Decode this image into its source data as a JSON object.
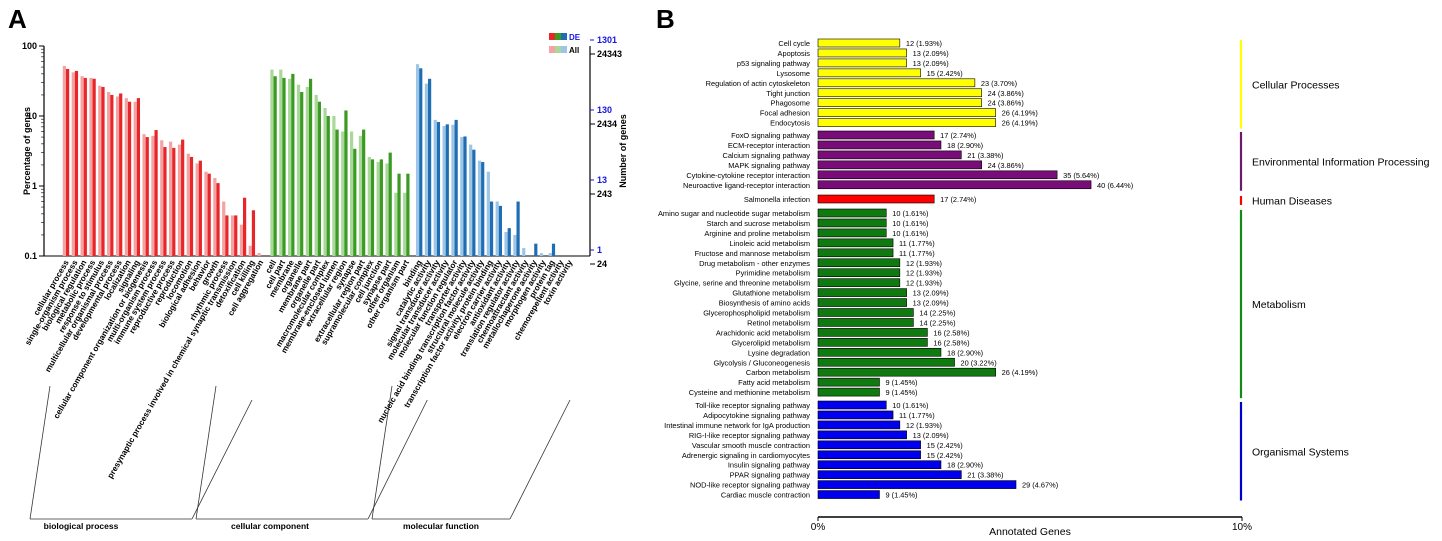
{
  "chart_data": [
    {
      "panel": "A",
      "type": "bar",
      "title": "",
      "ylabel_left": "Percentage of genes",
      "ylabel_right": "Number of genes",
      "yscale": "log",
      "ylim": [
        0.1,
        100
      ],
      "left_ticks": [
        "100",
        "10",
        "1",
        "0.1"
      ],
      "right_ticks": [
        {
          "de": "1301",
          "all": "24343"
        },
        {
          "de": "130",
          "all": "2434"
        },
        {
          "de": "13",
          "all": "243"
        },
        {
          "de": "1",
          "all": "24"
        }
      ],
      "legend": {
        "de_label": "DE",
        "all_label": "All"
      },
      "groups": [
        {
          "name": "biological process",
          "color_de": "#e8262a",
          "color_all": "#f4a3a3",
          "terms": [
            "cellular process",
            "single-organism process",
            "biological regulation",
            "metabolic process",
            "response to stimulus",
            "multicellular organismal process",
            "developmental process",
            "localization",
            "signaling",
            "cellular component organization or biogenesis",
            "multi-organism process",
            "immune system process",
            "reproductive process",
            "reproduction",
            "locomotion",
            "biological adhesion",
            "behavior",
            "growth",
            "rhythmic process",
            "presynaptic process involved in chemical synaptic transmission",
            "detoxification",
            "cell killing",
            "cell aggregation"
          ],
          "de": [
            47,
            44,
            35,
            34,
            26,
            20,
            21,
            16,
            18,
            5,
            6.3,
            3.6,
            3.5,
            4.6,
            2.6,
            2.3,
            1.5,
            1.1,
            0.38,
            0.38,
            0.68,
            0.45,
            0
          ],
          "all": [
            52,
            42,
            37,
            35,
            27,
            22,
            19,
            18,
            16,
            5.5,
            5.2,
            4.5,
            4.3,
            3.9,
            2.9,
            2.1,
            1.6,
            1.3,
            0.6,
            0.38,
            0.28,
            0.14,
            0.11
          ]
        },
        {
          "name": "cellular component",
          "color_de": "#3a9a22",
          "color_all": "#a9d89a",
          "terms": [
            "cell",
            "cell part",
            "membrane",
            "organelle",
            "membrane part",
            "organelle part",
            "macromolecular complex",
            "membrane-enclosed lumen",
            "extracellular region",
            "synapse",
            "extracellular region part",
            "supramolecular complex",
            "cell junction",
            "synapse part",
            "other organism",
            "other organism part"
          ],
          "de": [
            37,
            35,
            40,
            22,
            34,
            16,
            10,
            6.4,
            12,
            3.4,
            6.4,
            2.4,
            2.4,
            3,
            1.5,
            1.5
          ],
          "all": [
            46,
            46,
            34,
            28,
            26,
            20,
            13,
            10,
            6,
            6,
            5.2,
            2.6,
            2.2,
            2.1,
            0.8,
            0.8
          ]
        },
        {
          "name": "molecular function",
          "color_de": "#1f6db3",
          "color_all": "#9dc6e6",
          "terms": [
            "binding",
            "catalytic activity",
            "signal transducer activity",
            "molecular transducer activity",
            "molecular function regulator",
            "transporter activity",
            "nucleic acid binding transcription factor activity",
            "structural molecule activity",
            "transcription factor activity, protein binding",
            "electron carrier activity",
            "antioxidant activity",
            "translation regulator activity",
            "chemoattractant activity",
            "metallochaperone activity",
            "morphogen activity",
            "protein tag",
            "chemorepellent activity",
            "toxin activity"
          ],
          "de": [
            48,
            34,
            8.2,
            7.6,
            8.8,
            5.1,
            3.3,
            2.2,
            0.6,
            0.52,
            0.25,
            0.6,
            0,
            0.15,
            0,
            0.15,
            0,
            0
          ],
          "all": [
            55,
            29,
            8.8,
            7.2,
            7.5,
            5,
            3.9,
            2.3,
            1.6,
            0.6,
            0.22,
            0.2,
            0.13,
            0,
            0.11,
            0.11,
            0.1,
            0.1
          ]
        }
      ]
    },
    {
      "panel": "B",
      "type": "bar",
      "orientation": "horizontal",
      "xlabel": "Annotated Genes",
      "xlim": [
        0,
        10
      ],
      "x_ticks": [
        "0%",
        "10%"
      ],
      "categories": [
        {
          "name": "Cellular Processes",
          "color": "#ffff00",
          "line_color": "#ffff00",
          "items": [
            {
              "label": "Cell cycle",
              "value": 1.93,
              "text": "12 (1.93%)"
            },
            {
              "label": "Apoptosis",
              "value": 2.09,
              "text": "13 (2.09%)"
            },
            {
              "label": "p53 signaling pathway",
              "value": 2.09,
              "text": "13 (2.09%)"
            },
            {
              "label": "Lysosome",
              "value": 2.42,
              "text": "15 (2.42%)"
            },
            {
              "label": "Regulation of actin cytoskeleton",
              "value": 3.7,
              "text": "23 (3.70%)"
            },
            {
              "label": "Tight junction",
              "value": 3.86,
              "text": "24 (3.86%)"
            },
            {
              "label": "Phagosome",
              "value": 3.86,
              "text": "24 (3.86%)"
            },
            {
              "label": "Focal adhesion",
              "value": 4.19,
              "text": "26 (4.19%)"
            },
            {
              "label": "Endocytosis",
              "value": 4.19,
              "text": "26 (4.19%)"
            }
          ]
        },
        {
          "name": "Environmental Information Processing",
          "color": "#7a0c7a",
          "line_color": "#6a1b6a",
          "items": [
            {
              "label": "FoxO signaling pathway",
              "value": 2.74,
              "text": "17 (2.74%)"
            },
            {
              "label": "ECM-receptor interaction",
              "value": 2.9,
              "text": "18 (2.90%)"
            },
            {
              "label": "Calcium signaling pathway",
              "value": 3.38,
              "text": "21 (3.38%)"
            },
            {
              "label": "MAPK signaling pathway",
              "value": 3.86,
              "text": "24 (3.86%)"
            },
            {
              "label": "Cytokine-cytokine receptor interaction",
              "value": 5.64,
              "text": "35 (5.64%)"
            },
            {
              "label": "Neuroactive ligand-receptor interaction",
              "value": 6.44,
              "text": "40 (6.44%)"
            }
          ]
        },
        {
          "name": "Human Diseases",
          "color": "#ff0000",
          "line_color": "#ff0000",
          "items": [
            {
              "label": "Salmonella infection",
              "value": 2.74,
              "text": "17 (2.74%)"
            }
          ]
        },
        {
          "name": "Metabolism",
          "color": "#0f7a0f",
          "line_color": "#138a13",
          "items": [
            {
              "label": "Amino sugar and nucleotide sugar metabolism",
              "value": 1.61,
              "text": "10 (1.61%)"
            },
            {
              "label": "Starch and sucrose metabolism",
              "value": 1.61,
              "text": "10 (1.61%)"
            },
            {
              "label": "Arginine and proline metabolism",
              "value": 1.61,
              "text": "10 (1.61%)"
            },
            {
              "label": "Linoleic acid metabolism",
              "value": 1.77,
              "text": "11 (1.77%)"
            },
            {
              "label": "Fructose and mannose metabolism",
              "value": 1.77,
              "text": "11 (1.77%)"
            },
            {
              "label": "Drug metabolism - other enzymes",
              "value": 1.93,
              "text": "12 (1.93%)"
            },
            {
              "label": "Pyrimidine metabolism",
              "value": 1.93,
              "text": "12 (1.93%)"
            },
            {
              "label": "Glycine, serine and threonine metabolism",
              "value": 1.93,
              "text": "12 (1.93%)"
            },
            {
              "label": "Glutathione metabolism",
              "value": 2.09,
              "text": "13 (2.09%)"
            },
            {
              "label": "Biosynthesis of amino acids",
              "value": 2.09,
              "text": "13 (2.09%)"
            },
            {
              "label": "Glycerophospholipid metabolism",
              "value": 2.25,
              "text": "14 (2.25%)"
            },
            {
              "label": "Retinol metabolism",
              "value": 2.25,
              "text": "14 (2.25%)"
            },
            {
              "label": "Arachidonic acid metabolism",
              "value": 2.58,
              "text": "16 (2.58%)"
            },
            {
              "label": "Glycerolipid metabolism",
              "value": 2.58,
              "text": "16 (2.58%)"
            },
            {
              "label": "Lysine degradation",
              "value": 2.9,
              "text": "18 (2.90%)"
            },
            {
              "label": "Glycolysis / Gluconeogenesis",
              "value": 3.22,
              "text": "20 (3.22%)"
            },
            {
              "label": "Carbon metabolism",
              "value": 4.19,
              "text": "26 (4.19%)"
            },
            {
              "label": "Fatty acid metabolism",
              "value": 1.45,
              "text": "9 (1.45%)"
            },
            {
              "label": "Cysteine and methionine metabolism",
              "value": 1.45,
              "text": "9 (1.45%)"
            }
          ]
        },
        {
          "name": "Organismal Systems",
          "color": "#0000ee",
          "line_color": "#0000cc",
          "items": [
            {
              "label": "Toll-like receptor signaling pathway",
              "value": 1.61,
              "text": "10 (1.61%)"
            },
            {
              "label": "Adipocytokine signaling pathway",
              "value": 1.77,
              "text": "11 (1.77%)"
            },
            {
              "label": "Intestinal immune network for IgA production",
              "value": 1.93,
              "text": "12 (1.93%)"
            },
            {
              "label": "RIG-I-like receptor signaling pathway",
              "value": 2.09,
              "text": "13 (2.09%)"
            },
            {
              "label": "Vascular smooth muscle contraction",
              "value": 2.42,
              "text": "15 (2.42%)"
            },
            {
              "label": "Adrenergic signaling in cardiomyocytes",
              "value": 2.42,
              "text": "15 (2.42%)"
            },
            {
              "label": "Insulin signaling pathway",
              "value": 2.9,
              "text": "18 (2.90%)"
            },
            {
              "label": "PPAR signaling pathway",
              "value": 3.38,
              "text": "21 (3.38%)"
            },
            {
              "label": "NOD-like receptor signaling pathway",
              "value": 4.67,
              "text": "29 (4.67%)"
            },
            {
              "label": "Cardiac muscle contraction",
              "value": 1.45,
              "text": "9 (1.45%)"
            }
          ]
        }
      ]
    }
  ]
}
